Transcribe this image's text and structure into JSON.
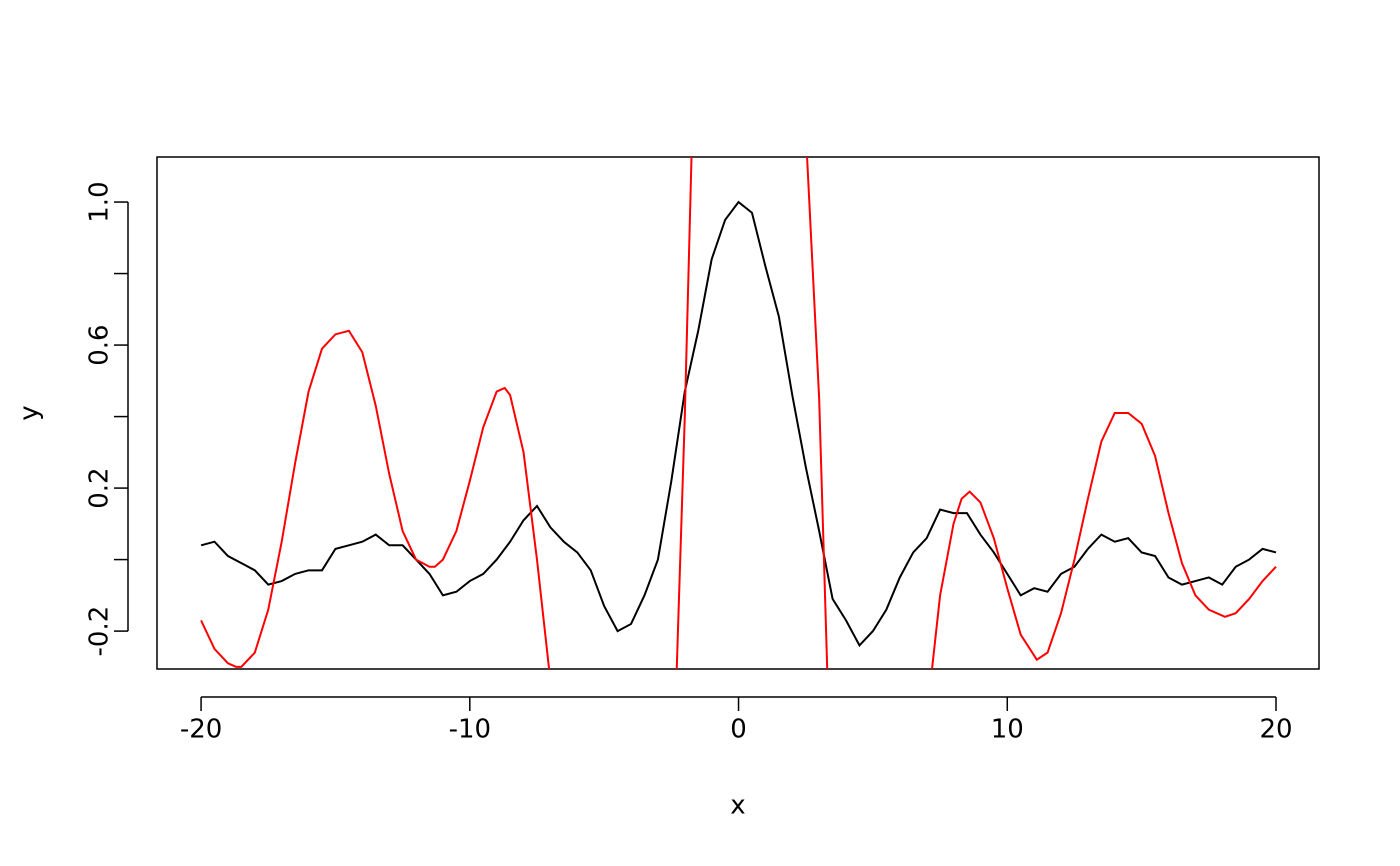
{
  "chart_data": {
    "type": "line",
    "x_label": "x",
    "y_label": "y",
    "xlim": [
      -21.64,
      21.6
    ],
    "ylim": [
      -0.306,
      1.126
    ],
    "xticks": [
      -20,
      -10,
      0,
      10,
      20
    ],
    "yticks": [
      -0.2,
      0,
      0.2,
      0.4,
      0.6,
      0.8,
      {
        "value": 1,
        "label": "1.0"
      }
    ],
    "ytick_labels_shown": [
      -0.2,
      0.2,
      0.6,
      1
    ],
    "series": [
      {
        "color": "#000000",
        "x": [
          -20,
          -19.5,
          -19,
          -18.5,
          -18,
          -17.5,
          -17,
          -16.5,
          -16,
          -15.5,
          -15,
          -14.5,
          -14,
          -13.5,
          -13,
          -12.5,
          -12,
          -11.5,
          -11,
          -10.5,
          -10,
          -9.5,
          -9,
          -8.5,
          -8,
          -7.5,
          -7,
          -6.5,
          -6,
          -5.5,
          -5,
          -4.5,
          -4,
          -3.5,
          -3,
          -2.5,
          -2,
          -1.5,
          -1,
          -0.5,
          0,
          0.5,
          1,
          1.5,
          2,
          2.5,
          3,
          3.5,
          4,
          4.5,
          5,
          5.5,
          6,
          6.5,
          7,
          7.5,
          8,
          8.5,
          9,
          9.5,
          10,
          10.5,
          11,
          11.5,
          12,
          12.5,
          13,
          13.5,
          14,
          14.5,
          15,
          15.5,
          16,
          16.5,
          17,
          17.5,
          18,
          18.5,
          19,
          19.5,
          20
        ],
        "values": [
          0.04,
          0.05,
          0.01,
          -0.01,
          -0.03,
          -0.07,
          -0.06,
          -0.04,
          -0.03,
          -0.03,
          0.03,
          0.04,
          0.05,
          0.07,
          0.04,
          0.04,
          0,
          -0.04,
          -0.1,
          -0.09,
          -0.06,
          -0.04,
          0,
          0.05,
          0.11,
          0.15,
          0.09,
          0.05,
          0.02,
          -0.03,
          -0.13,
          -0.2,
          -0.18,
          -0.1,
          0,
          0.22,
          0.47,
          0.64,
          0.84,
          0.95,
          1,
          0.97,
          0.82,
          0.68,
          0.46,
          0.26,
          0.08,
          -0.11,
          -0.17,
          -0.24,
          -0.2,
          -0.14,
          -0.05,
          0.02,
          0.06,
          0.14,
          0.13,
          0.13,
          0.07,
          0.02,
          -0.04,
          -0.1,
          -0.08,
          -0.09,
          -0.04,
          -0.02,
          0.03,
          0.07,
          0.05,
          0.06,
          0.02,
          0.01,
          -0.05,
          -0.07,
          -0.06,
          -0.05,
          -0.07,
          -0.02,
          0,
          0.03,
          0.02
        ]
      },
      {
        "color": "#ff0000",
        "x": [
          -20,
          -19.5,
          -19,
          -18.7,
          -18.5,
          -18,
          -17.5,
          -17,
          -16.5,
          -16,
          -15.5,
          -15,
          -14.5,
          -14,
          -13.5,
          -13,
          -12.5,
          -12,
          -11.5,
          -11.3,
          -11,
          -10.5,
          -10,
          -9.5,
          -9,
          -8.7,
          -8.5,
          -8,
          -7.5,
          -7.05,
          -4.7,
          -2.3,
          -2,
          -1.75,
          0.4,
          2.55,
          3,
          3.3,
          5.2,
          7.2,
          7.5,
          8,
          8.3,
          8.6,
          9,
          9.5,
          10,
          10.5,
          11.1,
          11.5,
          12,
          12.5,
          13,
          13.5,
          14,
          14.5,
          15,
          15.5,
          16,
          16.5,
          17,
          17.5,
          18.1,
          18.5,
          19,
          19.5,
          20
        ],
        "values": [
          -0.17,
          -0.25,
          -0.29,
          -0.3,
          -0.3,
          -0.26,
          -0.14,
          0.05,
          0.27,
          0.47,
          0.59,
          0.63,
          0.64,
          0.58,
          0.43,
          0.24,
          0.08,
          0,
          -0.02,
          -0.02,
          0,
          0.08,
          0.22,
          0.37,
          0.47,
          0.48,
          0.46,
          0.3,
          0,
          -0.306,
          null,
          -0.306,
          0.4,
          1.126,
          null,
          1.126,
          0.45,
          -0.306,
          null,
          -0.306,
          -0.1,
          0.1,
          0.17,
          0.19,
          0.16,
          0.06,
          -0.08,
          -0.21,
          -0.28,
          -0.26,
          -0.15,
          0,
          0.17,
          0.33,
          0.41,
          0.41,
          0.38,
          0.29,
          0.13,
          -0.01,
          -0.1,
          -0.14,
          -0.16,
          -0.15,
          -0.11,
          -0.06,
          -0.02
        ]
      }
    ]
  }
}
